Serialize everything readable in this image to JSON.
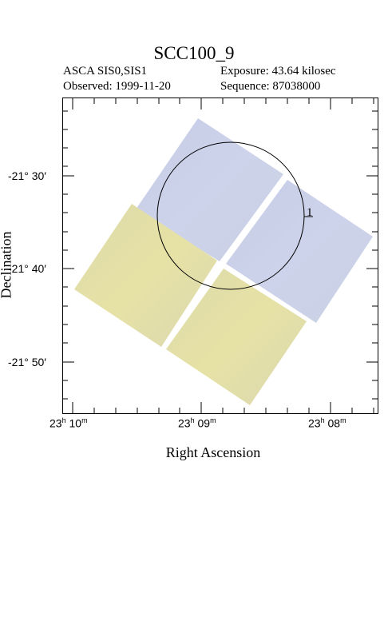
{
  "header": {
    "title": "SCC100_9",
    "instrument": "ASCA SIS0,SIS1",
    "exposure": "Exposure: 43.64 kilosec",
    "observed": "Observed: 1999-11-20",
    "sequence": "Sequence: 87038000"
  },
  "axes": {
    "x_label": "Right Ascension",
    "y_label": "Declination",
    "dec_ticks": [
      "-21° 30′",
      "-21° 40′",
      "-21° 50′"
    ],
    "ra_ticks": [
      {
        "h": "23",
        "m": "10"
      },
      {
        "h": "23",
        "m": "09"
      },
      {
        "h": "23",
        "m": "08"
      }
    ]
  },
  "source": {
    "label": "1"
  },
  "colors": {
    "upper_chips": "#c9d0e6",
    "lower_chips": "#e1dca8",
    "frame": "#000000"
  }
}
